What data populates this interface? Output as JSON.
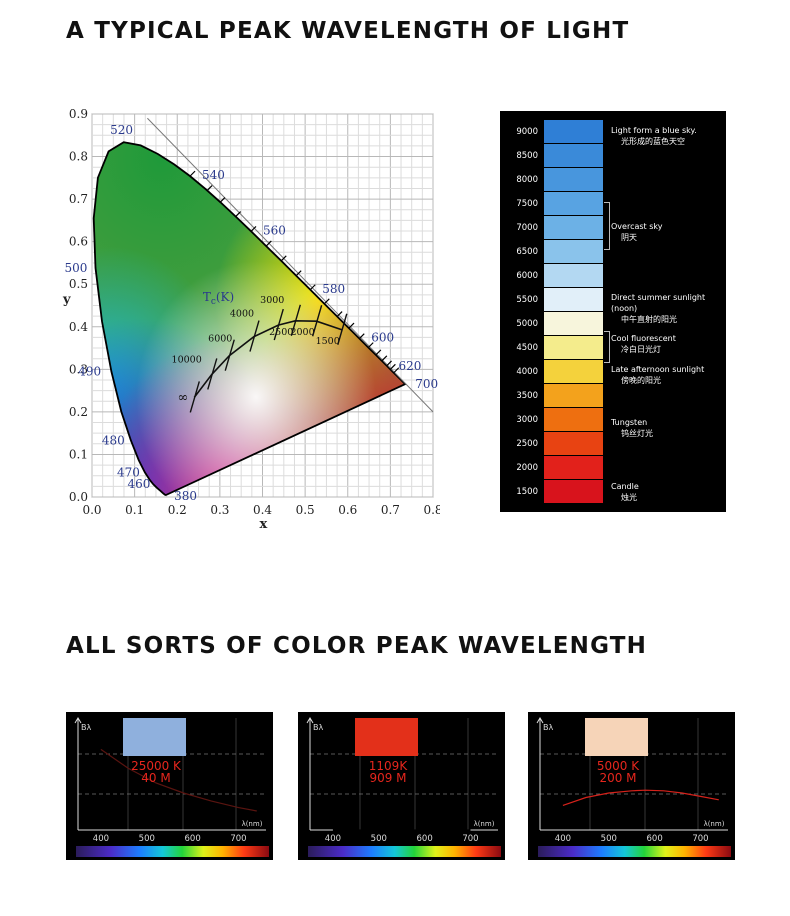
{
  "headings": {
    "top": "A TYPICAL PEAK WAVELENGTH OF LIGHT",
    "bottom": "ALL SORTS OF COLOR PEAK WAVELENGTH"
  },
  "chart_data": [
    {
      "type": "scatter",
      "title": "",
      "xlabel": "x",
      "ylabel": "y",
      "xlim": [
        0.0,
        0.8
      ],
      "ylim": [
        0.0,
        0.9
      ],
      "grid": true,
      "x_ticks": [
        "0.0",
        "0.1",
        "0.2",
        "0.3",
        "0.4",
        "0.5",
        "0.6",
        "0.7",
        "0.8"
      ],
      "y_ticks": [
        "0.0",
        "0.1",
        "0.2",
        "0.3",
        "0.4",
        "0.5",
        "0.6",
        "0.7",
        "0.8",
        "0.9"
      ],
      "spectral_locus_labels": [
        {
          "nm": "380",
          "x": 0.174,
          "y": 0.005
        },
        {
          "nm": "460",
          "x": 0.144,
          "y": 0.03
        },
        {
          "nm": "470",
          "x": 0.124,
          "y": 0.058
        },
        {
          "nm": "480",
          "x": 0.091,
          "y": 0.133
        },
        {
          "nm": "490",
          "x": 0.045,
          "y": 0.295
        },
        {
          "nm": "500",
          "x": 0.008,
          "y": 0.538
        },
        {
          "nm": "520",
          "x": 0.074,
          "y": 0.834
        },
        {
          "nm": "540",
          "x": 0.23,
          "y": 0.754
        },
        {
          "nm": "560",
          "x": 0.373,
          "y": 0.624
        },
        {
          "nm": "580",
          "x": 0.512,
          "y": 0.487
        },
        {
          "nm": "600",
          "x": 0.627,
          "y": 0.372
        },
        {
          "nm": "620",
          "x": 0.691,
          "y": 0.308
        },
        {
          "nm": "700",
          "x": 0.735,
          "y": 0.265
        }
      ],
      "planckian_locus": {
        "label": "Tc(K)",
        "label_main": "T",
        "label_sub": "c",
        "label_unit": "(K)",
        "points": [
          {
            "K": "1500",
            "x": 0.586,
            "y": 0.393
          },
          {
            "K": "2000",
            "x": 0.527,
            "y": 0.413
          },
          {
            "K": "2500",
            "x": 0.477,
            "y": 0.414
          },
          {
            "K": "3000",
            "x": 0.437,
            "y": 0.404
          },
          {
            "K": "4000",
            "x": 0.38,
            "y": 0.377
          },
          {
            "K": "6000",
            "x": 0.322,
            "y": 0.332
          },
          {
            "K": "10000",
            "x": 0.281,
            "y": 0.288
          },
          {
            "K": "∞",
            "x": 0.24,
            "y": 0.234
          }
        ]
      }
    },
    {
      "type": "table",
      "title": "",
      "rows": [
        {
          "k": "9000",
          "color": "#2f7fd6"
        },
        {
          "k": "8500",
          "color": "#3a8ad9"
        },
        {
          "k": "8000",
          "color": "#4896dd"
        },
        {
          "k": "7500",
          "color": "#58a3e2"
        },
        {
          "k": "7000",
          "color": "#6cb1e6"
        },
        {
          "k": "6500",
          "color": "#8ac3eb"
        },
        {
          "k": "6000",
          "color": "#b3d8f2"
        },
        {
          "k": "5500",
          "color": "#e1eff9"
        },
        {
          "k": "5000",
          "color": "#f7f5dc"
        },
        {
          "k": "4500",
          "color": "#f4ec8c"
        },
        {
          "k": "4000",
          "color": "#f4d23c"
        },
        {
          "k": "3500",
          "color": "#f3a21c"
        },
        {
          "k": "3000",
          "color": "#ee6f10"
        },
        {
          "k": "2500",
          "color": "#e84312"
        },
        {
          "k": "2000",
          "color": "#e2211b"
        },
        {
          "k": "1500",
          "color": "#d8131c"
        }
      ],
      "annotations": [
        {
          "en": "Light form a blue sky.",
          "zh": "光形成的蓝色天空"
        },
        {
          "en": "Overcast sky",
          "zh": "阴天"
        },
        {
          "en": "Direct summer sunlight",
          "en2": "(noon)",
          "zh": "中午直射的阳光"
        },
        {
          "en": "Cool fluorescent",
          "zh": "冷白日光灯"
        },
        {
          "en": "Late afternoon sunlight",
          "zh": "傍晚的阳光"
        },
        {
          "en": "Tungsten",
          "zh": "钨丝灯光"
        },
        {
          "en": "Candle",
          "zh": "烛光"
        }
      ]
    },
    {
      "type": "line",
      "ylabel": "Bλ",
      "xlabel": "λ(nm)",
      "x_ticks": [
        "400",
        "500",
        "600",
        "700"
      ],
      "color_temp": "25000 K",
      "peak": "40 M",
      "sample_color": "#8fb0dd",
      "curve_color": "#5a1410",
      "series": [
        {
          "x": [
            400,
            460,
            520,
            580,
            640,
            700,
            740
          ],
          "values": [
            0.72,
            0.55,
            0.42,
            0.33,
            0.26,
            0.2,
            0.17
          ]
        }
      ]
    },
    {
      "type": "line",
      "ylabel": "Bλ",
      "xlabel": "λ(nm)",
      "x_ticks": [
        "400",
        "500",
        "600",
        "700"
      ],
      "color_temp": "1109K",
      "peak": "909 M",
      "sample_color": "#e3301a",
      "curve_color": "#000000",
      "series": [
        {
          "x": [
            400,
            700
          ],
          "values": [
            0.0,
            0.0
          ]
        }
      ]
    },
    {
      "type": "line",
      "ylabel": "Bλ",
      "xlabel": "λ(nm)",
      "x_ticks": [
        "400",
        "500",
        "600",
        "700"
      ],
      "color_temp": "5000 K",
      "peak": "200 M",
      "sample_color": "#f6d4b8",
      "curve_color": "#d6221b",
      "series": [
        {
          "x": [
            400,
            450,
            500,
            550,
            580,
            620,
            660,
            700,
            740
          ],
          "values": [
            0.22,
            0.29,
            0.33,
            0.35,
            0.355,
            0.35,
            0.33,
            0.3,
            0.27
          ]
        }
      ]
    }
  ]
}
